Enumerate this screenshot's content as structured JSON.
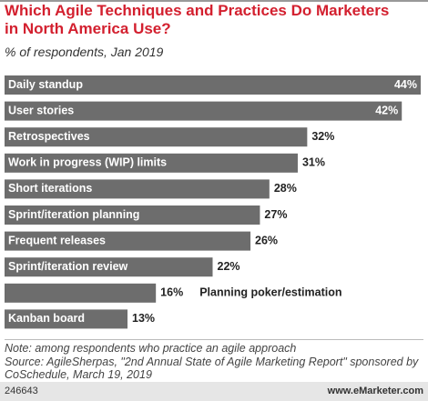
{
  "chart_data": {
    "type": "bar",
    "orientation": "horizontal",
    "title": "Which Agile Techniques and Practices Do Marketers in North America Use?",
    "subtitle": "% of respondents, Jan 2019",
    "categories": [
      "Daily standup",
      "User stories",
      "Retrospectives",
      "Work in progress (WIP) limits",
      "Short iterations",
      "Sprint/iteration planning",
      "Frequent releases",
      "Sprint/iteration review",
      "Planning poker/estimation",
      "Kanban board"
    ],
    "values": [
      44,
      42,
      32,
      31,
      28,
      27,
      26,
      22,
      16,
      13
    ],
    "value_labels": [
      "44%",
      "42%",
      "32%",
      "31%",
      "28%",
      "27%",
      "26%",
      "22%",
      "16%",
      "13%"
    ],
    "color": "#6d6d6d",
    "notes": [
      "Note: among respondents who practice an agile approach",
      "Source: AgileSherpas, \"2nd Annual State of Agile Marketing Report\" sponsored by CoSchedule, March 19, 2019"
    ],
    "footer_id": "246643",
    "footer_site": "www.eMarketer.com"
  }
}
